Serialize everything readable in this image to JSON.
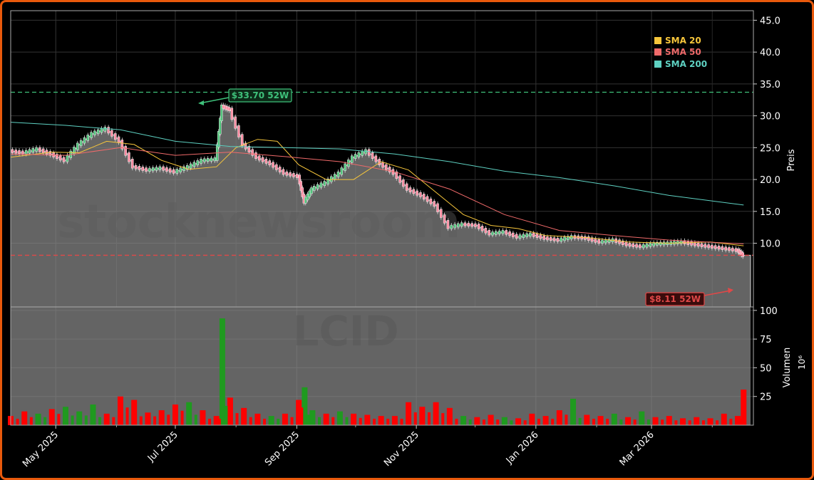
{
  "chart_data": [
    {
      "type": "candlestick",
      "ticker_watermark": "LCID",
      "watermark": "stocknewsroom",
      "ylabel": "Preis",
      "ylim": [
        0,
        46.5
      ],
      "yticks": [
        10.0,
        15.0,
        20.0,
        25.0,
        30.0,
        35.0,
        40.0,
        45.0
      ],
      "x_range": [
        "2025-04-08",
        "2026-04-22"
      ],
      "x_ticks": [
        {
          "date": "2025-05-01",
          "label": "May 2025"
        },
        {
          "date": "2025-07-01",
          "label": "Jul 2025"
        },
        {
          "date": "2025-09-01",
          "label": "Sep 2025"
        },
        {
          "date": "2025-11-01",
          "label": "Nov 2025"
        },
        {
          "date": "2026-01-01",
          "label": "Jan 2026"
        },
        {
          "date": "2026-03-01",
          "label": "Mar 2026"
        }
      ],
      "close": [
        {
          "date": "2025-04-08",
          "close": 24.5
        },
        {
          "date": "2025-04-15",
          "close": 24.2
        },
        {
          "date": "2025-04-22",
          "close": 24.8
        },
        {
          "date": "2025-04-29",
          "close": 24.0
        },
        {
          "date": "2025-05-06",
          "close": 23.0
        },
        {
          "date": "2025-05-13",
          "close": 25.5
        },
        {
          "date": "2025-05-20",
          "close": 27.2
        },
        {
          "date": "2025-05-27",
          "close": 28.0
        },
        {
          "date": "2025-06-03",
          "close": 26.0
        },
        {
          "date": "2025-06-10",
          "close": 22.0
        },
        {
          "date": "2025-06-17",
          "close": 21.5
        },
        {
          "date": "2025-06-24",
          "close": 21.8
        },
        {
          "date": "2025-07-01",
          "close": 21.2
        },
        {
          "date": "2025-07-08",
          "close": 22.0
        },
        {
          "date": "2025-07-15",
          "close": 23.0
        },
        {
          "date": "2025-07-22",
          "close": 23.2
        },
        {
          "date": "2025-07-25",
          "close": 31.5
        },
        {
          "date": "2025-07-29",
          "close": 31.0
        },
        {
          "date": "2025-08-05",
          "close": 25.5
        },
        {
          "date": "2025-08-12",
          "close": 23.5
        },
        {
          "date": "2025-08-19",
          "close": 22.5
        },
        {
          "date": "2025-08-26",
          "close": 21.0
        },
        {
          "date": "2025-09-02",
          "close": 20.5
        },
        {
          "date": "2025-09-05",
          "close": 16.5
        },
        {
          "date": "2025-09-09",
          "close": 18.5
        },
        {
          "date": "2025-09-16",
          "close": 19.5
        },
        {
          "date": "2025-09-23",
          "close": 21.0
        },
        {
          "date": "2025-09-30",
          "close": 23.5
        },
        {
          "date": "2025-10-07",
          "close": 24.5
        },
        {
          "date": "2025-10-14",
          "close": 22.5
        },
        {
          "date": "2025-10-21",
          "close": 21.0
        },
        {
          "date": "2025-10-28",
          "close": 18.5
        },
        {
          "date": "2025-11-04",
          "close": 17.5
        },
        {
          "date": "2025-11-11",
          "close": 16.0
        },
        {
          "date": "2025-11-18",
          "close": 12.5
        },
        {
          "date": "2025-11-25",
          "close": 13.0
        },
        {
          "date": "2025-12-02",
          "close": 12.8
        },
        {
          "date": "2025-12-09",
          "close": 11.5
        },
        {
          "date": "2025-12-16",
          "close": 11.8
        },
        {
          "date": "2025-12-23",
          "close": 11.0
        },
        {
          "date": "2025-12-30",
          "close": 11.4
        },
        {
          "date": "2026-01-06",
          "close": 10.8
        },
        {
          "date": "2026-01-13",
          "close": 10.5
        },
        {
          "date": "2026-01-20",
          "close": 11.0
        },
        {
          "date": "2026-01-27",
          "close": 10.8
        },
        {
          "date": "2026-02-03",
          "close": 10.2
        },
        {
          "date": "2026-02-10",
          "close": 10.5
        },
        {
          "date": "2026-02-17",
          "close": 9.8
        },
        {
          "date": "2026-02-24",
          "close": 9.5
        },
        {
          "date": "2026-03-03",
          "close": 9.9
        },
        {
          "date": "2026-03-10",
          "close": 10.0
        },
        {
          "date": "2026-03-17",
          "close": 10.2
        },
        {
          "date": "2026-03-24",
          "close": 9.8
        },
        {
          "date": "2026-03-31",
          "close": 9.5
        },
        {
          "date": "2026-04-07",
          "close": 9.2
        },
        {
          "date": "2026-04-14",
          "close": 8.9
        },
        {
          "date": "2026-04-17",
          "close": 8.11
        }
      ],
      "series": [
        {
          "name": "SMA 20",
          "color": "#f7c63b",
          "values": [
            {
              "date": "2025-04-08",
              "value": 23.5
            },
            {
              "date": "2025-04-29",
              "value": 24.3
            },
            {
              "date": "2025-05-13",
              "value": 24.2
            },
            {
              "date": "2025-05-27",
              "value": 26.0
            },
            {
              "date": "2025-06-10",
              "value": 25.5
            },
            {
              "date": "2025-06-24",
              "value": 23.0
            },
            {
              "date": "2025-07-08",
              "value": 21.6
            },
            {
              "date": "2025-07-22",
              "value": 22.0
            },
            {
              "date": "2025-08-01",
              "value": 25.0
            },
            {
              "date": "2025-08-12",
              "value": 26.3
            },
            {
              "date": "2025-08-22",
              "value": 26.0
            },
            {
              "date": "2025-09-02",
              "value": 22.3
            },
            {
              "date": "2025-09-16",
              "value": 20.0
            },
            {
              "date": "2025-09-30",
              "value": 20.0
            },
            {
              "date": "2025-10-14",
              "value": 22.8
            },
            {
              "date": "2025-10-28",
              "value": 21.5
            },
            {
              "date": "2025-11-11",
              "value": 18.0
            },
            {
              "date": "2025-11-25",
              "value": 14.5
            },
            {
              "date": "2025-12-09",
              "value": 12.8
            },
            {
              "date": "2025-12-23",
              "value": 12.3
            },
            {
              "date": "2026-01-06",
              "value": 11.2
            },
            {
              "date": "2026-01-27",
              "value": 10.9
            },
            {
              "date": "2026-02-17",
              "value": 10.2
            },
            {
              "date": "2026-03-10",
              "value": 10.0
            },
            {
              "date": "2026-03-31",
              "value": 10.2
            },
            {
              "date": "2026-04-17",
              "value": 9.6
            }
          ]
        },
        {
          "name": "SMA 50",
          "color": "#f06a6a",
          "values": [
            {
              "date": "2025-04-08",
              "value": 24.0
            },
            {
              "date": "2025-05-06",
              "value": 23.8
            },
            {
              "date": "2025-06-03",
              "value": 25.0
            },
            {
              "date": "2025-07-01",
              "value": 23.8
            },
            {
              "date": "2025-07-29",
              "value": 24.3
            },
            {
              "date": "2025-08-26",
              "value": 23.6
            },
            {
              "date": "2025-09-23",
              "value": 22.8
            },
            {
              "date": "2025-10-21",
              "value": 21.2
            },
            {
              "date": "2025-11-18",
              "value": 18.5
            },
            {
              "date": "2025-12-16",
              "value": 14.5
            },
            {
              "date": "2026-01-13",
              "value": 12.0
            },
            {
              "date": "2026-02-10",
              "value": 11.2
            },
            {
              "date": "2026-03-10",
              "value": 10.5
            },
            {
              "date": "2026-04-17",
              "value": 9.9
            }
          ]
        },
        {
          "name": "SMA 200",
          "color": "#5ed1c2",
          "values": [
            {
              "date": "2025-04-08",
              "value": 29.0
            },
            {
              "date": "2025-05-06",
              "value": 28.5
            },
            {
              "date": "2025-06-03",
              "value": 27.8
            },
            {
              "date": "2025-07-01",
              "value": 26.0
            },
            {
              "date": "2025-07-29",
              "value": 25.2
            },
            {
              "date": "2025-08-26",
              "value": 25.0
            },
            {
              "date": "2025-09-23",
              "value": 24.8
            },
            {
              "date": "2025-10-21",
              "value": 24.0
            },
            {
              "date": "2025-11-18",
              "value": 22.8
            },
            {
              "date": "2025-12-16",
              "value": 21.3
            },
            {
              "date": "2026-01-13",
              "value": 20.3
            },
            {
              "date": "2026-02-10",
              "value": 19.0
            },
            {
              "date": "2026-03-10",
              "value": 17.5
            },
            {
              "date": "2026-04-17",
              "value": 16.0
            }
          ]
        }
      ],
      "high_52w": {
        "value": 33.7,
        "label": "$33.70 52W",
        "color": "#3ec07a",
        "date": "2025-07-25"
      },
      "low_52w": {
        "value": 8.11,
        "label": "$8.11 52W",
        "color": "#e04848",
        "date": "2026-04-17"
      },
      "legend": {
        "placement": "top-right",
        "entries": [
          "SMA 20",
          "SMA 50",
          "SMA 200"
        ]
      },
      "grid": true
    },
    {
      "type": "bar",
      "ylabel": "Volumen",
      "yunit": "10⁶",
      "ylim": [
        0,
        103
      ],
      "yticks": [
        25,
        50,
        75,
        100
      ],
      "colors": {
        "up": "#1f9a1f",
        "down": "#ff0000"
      },
      "bars": [
        {
          "date": "2025-04-08",
          "value": 8,
          "dir": "down"
        },
        {
          "date": "2025-04-15",
          "value": 12,
          "dir": "down"
        },
        {
          "date": "2025-04-22",
          "value": 10,
          "dir": "up"
        },
        {
          "date": "2025-04-29",
          "value": 14,
          "dir": "down"
        },
        {
          "date": "2025-05-06",
          "value": 16,
          "dir": "up"
        },
        {
          "date": "2025-05-13",
          "value": 12,
          "dir": "up"
        },
        {
          "date": "2025-05-20",
          "value": 18,
          "dir": "up"
        },
        {
          "date": "2025-05-27",
          "value": 10,
          "dir": "down"
        },
        {
          "date": "2025-06-03",
          "value": 25,
          "dir": "down"
        },
        {
          "date": "2025-06-10",
          "value": 22,
          "dir": "down"
        },
        {
          "date": "2025-06-17",
          "value": 11,
          "dir": "down"
        },
        {
          "date": "2025-06-24",
          "value": 13,
          "dir": "down"
        },
        {
          "date": "2025-07-01",
          "value": 18,
          "dir": "down"
        },
        {
          "date": "2025-07-08",
          "value": 20,
          "dir": "up"
        },
        {
          "date": "2025-07-15",
          "value": 13,
          "dir": "down"
        },
        {
          "date": "2025-07-22",
          "value": 8,
          "dir": "down"
        },
        {
          "date": "2025-07-25",
          "value": 93,
          "dir": "up"
        },
        {
          "date": "2025-07-29",
          "value": 24,
          "dir": "down"
        },
        {
          "date": "2025-08-05",
          "value": 15,
          "dir": "down"
        },
        {
          "date": "2025-08-12",
          "value": 10,
          "dir": "down"
        },
        {
          "date": "2025-08-19",
          "value": 8,
          "dir": "up"
        },
        {
          "date": "2025-08-26",
          "value": 10,
          "dir": "down"
        },
        {
          "date": "2025-09-02",
          "value": 22,
          "dir": "down"
        },
        {
          "date": "2025-09-05",
          "value": 33,
          "dir": "up"
        },
        {
          "date": "2025-09-09",
          "value": 13,
          "dir": "up"
        },
        {
          "date": "2025-09-16",
          "value": 10,
          "dir": "down"
        },
        {
          "date": "2025-09-23",
          "value": 12,
          "dir": "up"
        },
        {
          "date": "2025-09-30",
          "value": 10,
          "dir": "down"
        },
        {
          "date": "2025-10-07",
          "value": 9,
          "dir": "down"
        },
        {
          "date": "2025-10-14",
          "value": 8,
          "dir": "down"
        },
        {
          "date": "2025-10-21",
          "value": 8,
          "dir": "down"
        },
        {
          "date": "2025-10-28",
          "value": 20,
          "dir": "down"
        },
        {
          "date": "2025-11-04",
          "value": 16,
          "dir": "down"
        },
        {
          "date": "2025-11-11",
          "value": 20,
          "dir": "down"
        },
        {
          "date": "2025-11-18",
          "value": 15,
          "dir": "down"
        },
        {
          "date": "2025-11-25",
          "value": 8,
          "dir": "up"
        },
        {
          "date": "2025-12-02",
          "value": 7,
          "dir": "down"
        },
        {
          "date": "2025-12-09",
          "value": 9,
          "dir": "down"
        },
        {
          "date": "2025-12-16",
          "value": 7,
          "dir": "up"
        },
        {
          "date": "2025-12-23",
          "value": 6,
          "dir": "down"
        },
        {
          "date": "2025-12-30",
          "value": 10,
          "dir": "down"
        },
        {
          "date": "2026-01-06",
          "value": 8,
          "dir": "down"
        },
        {
          "date": "2026-01-13",
          "value": 13,
          "dir": "down"
        },
        {
          "date": "2026-01-20",
          "value": 23,
          "dir": "up"
        },
        {
          "date": "2026-01-27",
          "value": 9,
          "dir": "down"
        },
        {
          "date": "2026-02-03",
          "value": 8,
          "dir": "down"
        },
        {
          "date": "2026-02-10",
          "value": 10,
          "dir": "up"
        },
        {
          "date": "2026-02-17",
          "value": 7,
          "dir": "down"
        },
        {
          "date": "2026-02-24",
          "value": 12,
          "dir": "up"
        },
        {
          "date": "2026-03-03",
          "value": 7,
          "dir": "down"
        },
        {
          "date": "2026-03-10",
          "value": 8,
          "dir": "down"
        },
        {
          "date": "2026-03-17",
          "value": 6,
          "dir": "down"
        },
        {
          "date": "2026-03-24",
          "value": 7,
          "dir": "down"
        },
        {
          "date": "2026-03-31",
          "value": 6,
          "dir": "down"
        },
        {
          "date": "2026-04-07",
          "value": 10,
          "dir": "down"
        },
        {
          "date": "2026-04-14",
          "value": 8,
          "dir": "down"
        },
        {
          "date": "2026-04-17",
          "value": 31,
          "dir": "down"
        }
      ]
    }
  ]
}
